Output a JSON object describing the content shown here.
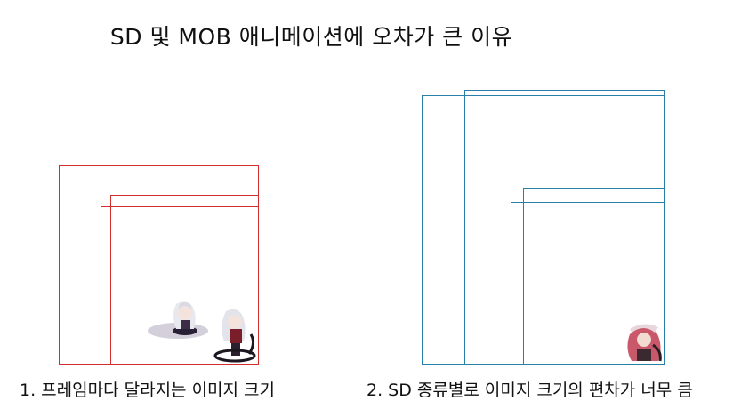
{
  "title": "SD 및 MOB 애니메이션에 오차가 큰 이유",
  "captions": {
    "frame_size": "1. 프레임마다 달라지는 이미지 크기",
    "sd_type": "2. SD 종류별로 이미지 크기의 편차가 너무 큼"
  },
  "colors": {
    "frame_outline": "#d42f2f",
    "sd_outline": "#2a7fa8",
    "background": "#ffffff"
  }
}
